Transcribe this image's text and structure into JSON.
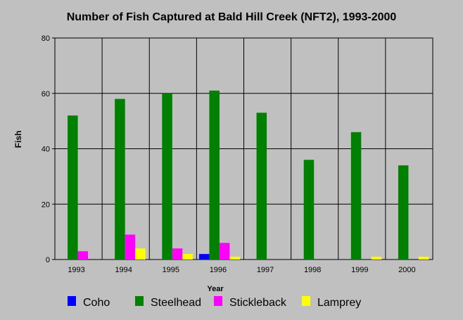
{
  "chart_data": {
    "type": "bar",
    "title": "Number of Fish Captured at Bald Hill Creek (NFT2), 1993-2000",
    "xlabel": "Year",
    "ylabel": "Fish",
    "categories": [
      "1993",
      "1994",
      "1995",
      "1996",
      "1997",
      "1998",
      "1999",
      "2000"
    ],
    "ylim": [
      0,
      80
    ],
    "yticks": [
      0,
      20,
      40,
      60,
      80
    ],
    "grid": true,
    "legend_position": "bottom",
    "series": [
      {
        "name": "Coho",
        "color": "#0000ff",
        "values": [
          0,
          0,
          0,
          2,
          0,
          0,
          0,
          0
        ]
      },
      {
        "name": "Steelhead",
        "color": "#008000",
        "values": [
          52,
          58,
          60,
          61,
          53,
          36,
          46,
          34
        ]
      },
      {
        "name": "Stickleback",
        "color": "#ff00ff",
        "values": [
          3,
          9,
          4,
          6,
          0,
          0,
          0,
          0
        ]
      },
      {
        "name": "Lamprey",
        "color": "#ffff00",
        "values": [
          0,
          4,
          2,
          1,
          0,
          0,
          1,
          1
        ]
      }
    ]
  }
}
